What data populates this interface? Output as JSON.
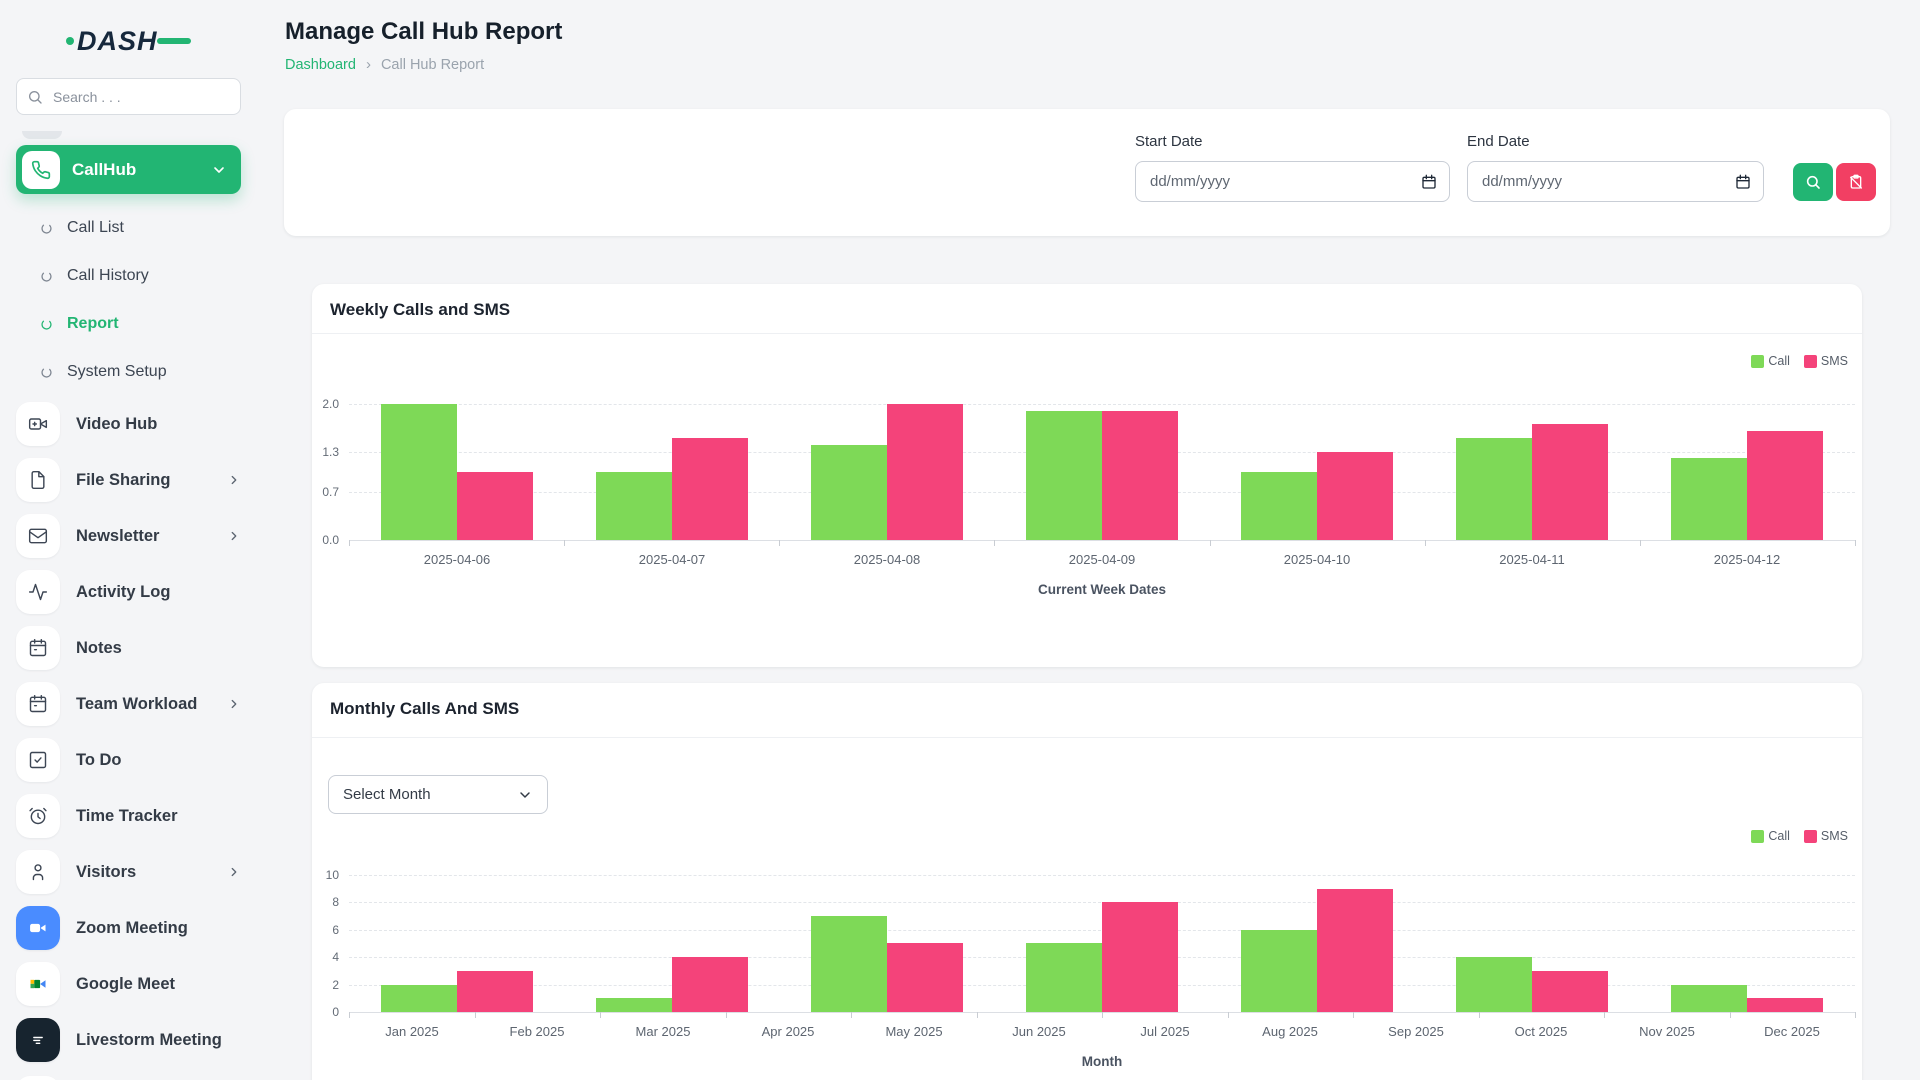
{
  "colors": {
    "accent_green": "#22b573",
    "accent_pink": "#f23f63",
    "chart_call_green": "#7ed957",
    "chart_sms_pink": "#f4437a"
  },
  "sidebar": {
    "logo_text": "DASH",
    "search_placeholder": "Search . . .",
    "active_group": {
      "label": "CallHub",
      "icon": "phone-icon"
    },
    "sub_items": [
      {
        "label": "Call List",
        "active": false
      },
      {
        "label": "Call History",
        "active": false
      },
      {
        "label": "Report",
        "active": true
      },
      {
        "label": "System Setup",
        "active": false
      }
    ],
    "items": [
      {
        "label": "Video Hub",
        "icon": "video-camera-icon",
        "chevron": false,
        "tile": "default"
      },
      {
        "label": "File Sharing",
        "icon": "file-icon",
        "chevron": true,
        "tile": "default"
      },
      {
        "label": "Newsletter",
        "icon": "mail-icon",
        "chevron": true,
        "tile": "default"
      },
      {
        "label": "Activity Log",
        "icon": "activity-icon",
        "chevron": false,
        "tile": "default"
      },
      {
        "label": "Notes",
        "icon": "calendar-icon",
        "chevron": false,
        "tile": "default"
      },
      {
        "label": "Team Workload",
        "icon": "calendar-icon",
        "chevron": true,
        "tile": "default"
      },
      {
        "label": "To Do",
        "icon": "checkbox-icon",
        "chevron": false,
        "tile": "default"
      },
      {
        "label": "Time Tracker",
        "icon": "alarm-clock-icon",
        "chevron": false,
        "tile": "default"
      },
      {
        "label": "Visitors",
        "icon": "person-icon",
        "chevron": true,
        "tile": "default"
      },
      {
        "label": "Zoom Meeting",
        "icon": "zoom-video-icon",
        "chevron": false,
        "tile": "zoom"
      },
      {
        "label": "Google Meet",
        "icon": "google-meet-icon",
        "chevron": false,
        "tile": "meet"
      },
      {
        "label": "Livestorm Meeting",
        "icon": "livestorm-icon",
        "chevron": false,
        "tile": "livestorm"
      }
    ]
  },
  "header": {
    "title": "Manage Call Hub Report",
    "breadcrumb": {
      "home": "Dashboard",
      "separator": "›",
      "current": "Call Hub Report"
    }
  },
  "filters": {
    "start_label": "Start Date",
    "end_label": "End Date",
    "start_placeholder": "dd/mm/yyyy",
    "end_placeholder": "dd/mm/yyyy"
  },
  "monthly_select": {
    "value": "Select Month"
  },
  "chart_data": [
    {
      "type": "bar",
      "title": "Weekly Calls and SMS",
      "categories": [
        "2025-04-06",
        "2025-04-07",
        "2025-04-08",
        "2025-04-09",
        "2025-04-10",
        "2025-04-11",
        "2025-04-12"
      ],
      "series": [
        {
          "name": "Call",
          "color": "#7ed957",
          "values": [
            2.0,
            1.0,
            1.4,
            1.9,
            1.0,
            1.5,
            1.2
          ]
        },
        {
          "name": "SMS",
          "color": "#f4437a",
          "values": [
            1.0,
            1.5,
            2.0,
            1.9,
            1.3,
            1.7,
            1.6
          ]
        }
      ],
      "xlabel": "Current Week Dates",
      "ylabel": "",
      "ylim": [
        0,
        2
      ],
      "yticks": [
        0,
        0.7,
        1.3,
        2
      ],
      "ytick_labels": [
        "0.0",
        "0.7",
        "1.3",
        "2.0"
      ],
      "grid": true,
      "legend_position": "top-right"
    },
    {
      "type": "bar",
      "title": "Monthly Calls And SMS",
      "categories": [
        "Jan 2025",
        "Feb 2025",
        "Mar 2025",
        "Apr 2025",
        "May 2025",
        "Jun 2025",
        "Jul 2025",
        "Aug 2025",
        "Sep 2025",
        "Oct 2025",
        "Nov 2025",
        "Dec 2025"
      ],
      "series": [
        {
          "name": "Call",
          "color": "#7ed957",
          "values": [
            2,
            1,
            7,
            5,
            6,
            4,
            2
          ]
        },
        {
          "name": "SMS",
          "color": "#f4437a",
          "values": [
            3,
            4,
            5,
            8,
            9,
            3,
            1
          ]
        }
      ],
      "xlabel": "Month",
      "ylabel": "",
      "ylim": [
        0,
        10
      ],
      "yticks": [
        0,
        2,
        4,
        6,
        8,
        10
      ],
      "ytick_labels": [
        "0",
        "2",
        "4",
        "6",
        "8",
        "10"
      ],
      "grid": true,
      "legend_position": "top-right",
      "layout_note": "7 bar pairs rendered evenly across 12 month tick labels"
    }
  ]
}
